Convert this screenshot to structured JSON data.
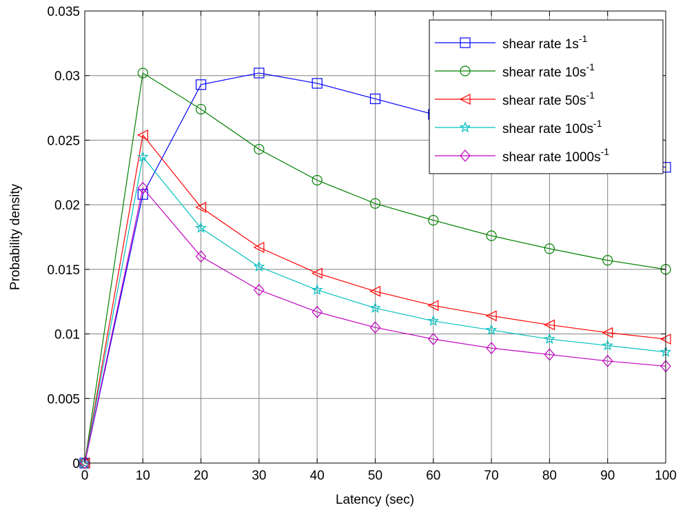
{
  "chart_data": {
    "type": "line",
    "title": "",
    "xlabel": "Latency (sec)",
    "ylabel": "Probability density",
    "xlim": [
      0,
      100
    ],
    "ylim": [
      0,
      0.035
    ],
    "xticks": [
      0,
      10,
      20,
      30,
      40,
      50,
      60,
      70,
      80,
      90,
      100
    ],
    "yticks": [
      0,
      0.005,
      0.01,
      0.015,
      0.02,
      0.025,
      0.03,
      0.035
    ],
    "xtick_labels": [
      "0",
      "10",
      "20",
      "30",
      "40",
      "50",
      "60",
      "70",
      "80",
      "90",
      "100"
    ],
    "ytick_labels": [
      "0",
      "0.005",
      "0.01",
      "0.015",
      "0.02",
      "0.025",
      "0.03",
      "0.035"
    ],
    "grid": true,
    "legend_position": "top-right",
    "x": [
      0,
      10,
      20,
      30,
      40,
      50,
      60,
      70,
      80,
      90,
      100
    ],
    "series": [
      {
        "label_main": "shear rate 1s",
        "label_sup": "-1",
        "color": "#0000ff",
        "marker": "square",
        "values": [
          0,
          0.0208,
          0.0293,
          0.0302,
          0.0294,
          0.0282,
          0.027,
          0.0259,
          0.0249,
          0.0239,
          0.0229
        ]
      },
      {
        "label_main": "shear rate 10s",
        "label_sup": "-1",
        "color": "#008000",
        "marker": "circle",
        "values": [
          0,
          0.0302,
          0.0274,
          0.0243,
          0.0219,
          0.0201,
          0.0188,
          0.0176,
          0.0166,
          0.0157,
          0.015
        ]
      },
      {
        "label_main": "shear rate 50s",
        "label_sup": "-1",
        "color": "#ff0000",
        "marker": "triangle-left",
        "values": [
          0,
          0.0254,
          0.0198,
          0.0167,
          0.0147,
          0.0133,
          0.0122,
          0.0114,
          0.0107,
          0.0101,
          0.0096
        ]
      },
      {
        "label_main": "shear rate 100s",
        "label_sup": "-1",
        "color": "#00bfbf",
        "marker": "star",
        "values": [
          0,
          0.0237,
          0.0182,
          0.0152,
          0.0134,
          0.012,
          0.011,
          0.0103,
          0.0096,
          0.0091,
          0.0086
        ]
      },
      {
        "label_main": "shear rate 1000s",
        "label_sup": "-1",
        "color": "#bf00bf",
        "marker": "diamond",
        "values": [
          0,
          0.0213,
          0.016,
          0.0134,
          0.0117,
          0.0105,
          0.0096,
          0.0089,
          0.0084,
          0.0079,
          0.0075
        ]
      }
    ]
  }
}
